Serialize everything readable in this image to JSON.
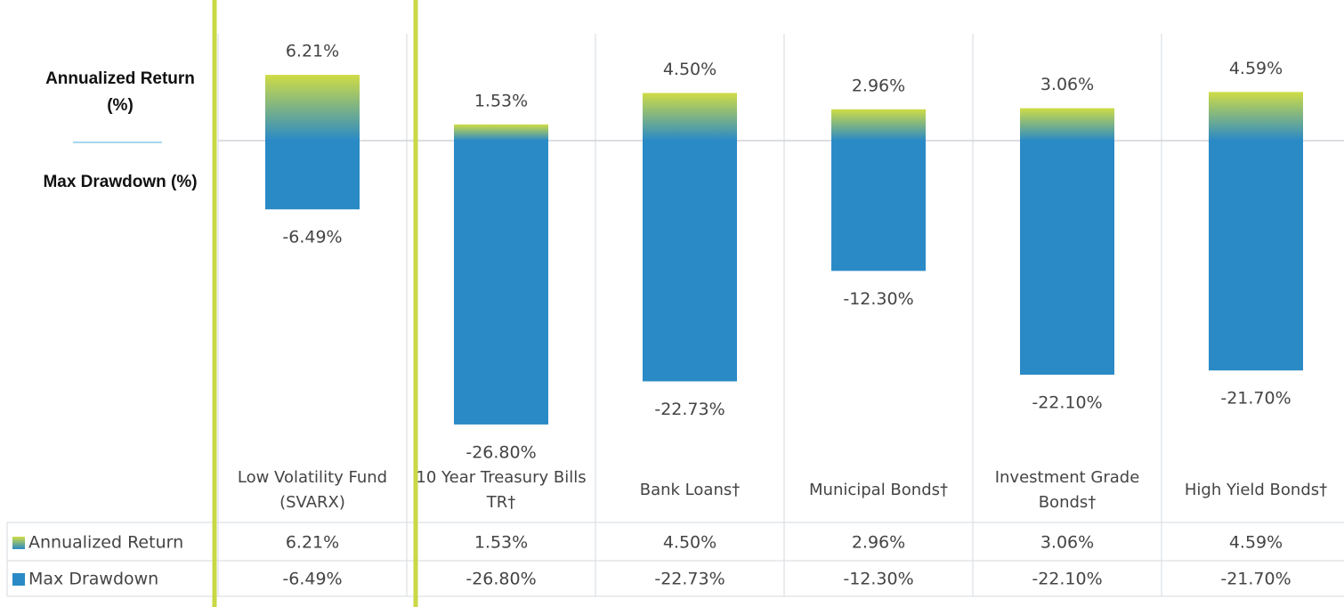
{
  "chart_data": {
    "type": "bar",
    "y_labels": [
      "Annualized Return (%)",
      "Max Drawdown (%)"
    ],
    "categories": [
      "Low Volatility Fund (SVARX)",
      "10 Year Treasury Bills TR†",
      "Bank Loans†",
      "Municipal Bonds†",
      "Investment Grade Bonds†",
      "High Yield Bonds†"
    ],
    "series": [
      {
        "name": "Annualized Return",
        "color": "#2a8ac6",
        "color_top": "#cfdc45",
        "values": [
          6.21,
          1.53,
          4.5,
          2.96,
          3.06,
          4.59
        ],
        "value_labels": [
          "6.21%",
          "1.53%",
          "4.50%",
          "2.96%",
          "3.06%",
          "4.59%"
        ]
      },
      {
        "name": "Max Drawdown",
        "color": "#2a8ac6",
        "values": [
          -6.49,
          -26.8,
          -22.73,
          -12.3,
          -22.1,
          -21.7
        ],
        "value_labels": [
          "-6.49%",
          "-26.80%",
          "-22.73%",
          "-12.30%",
          "-22.10%",
          "-21.70%"
        ]
      }
    ],
    "ylim": [
      -30,
      10
    ],
    "highlight_color": "#c9d845"
  }
}
